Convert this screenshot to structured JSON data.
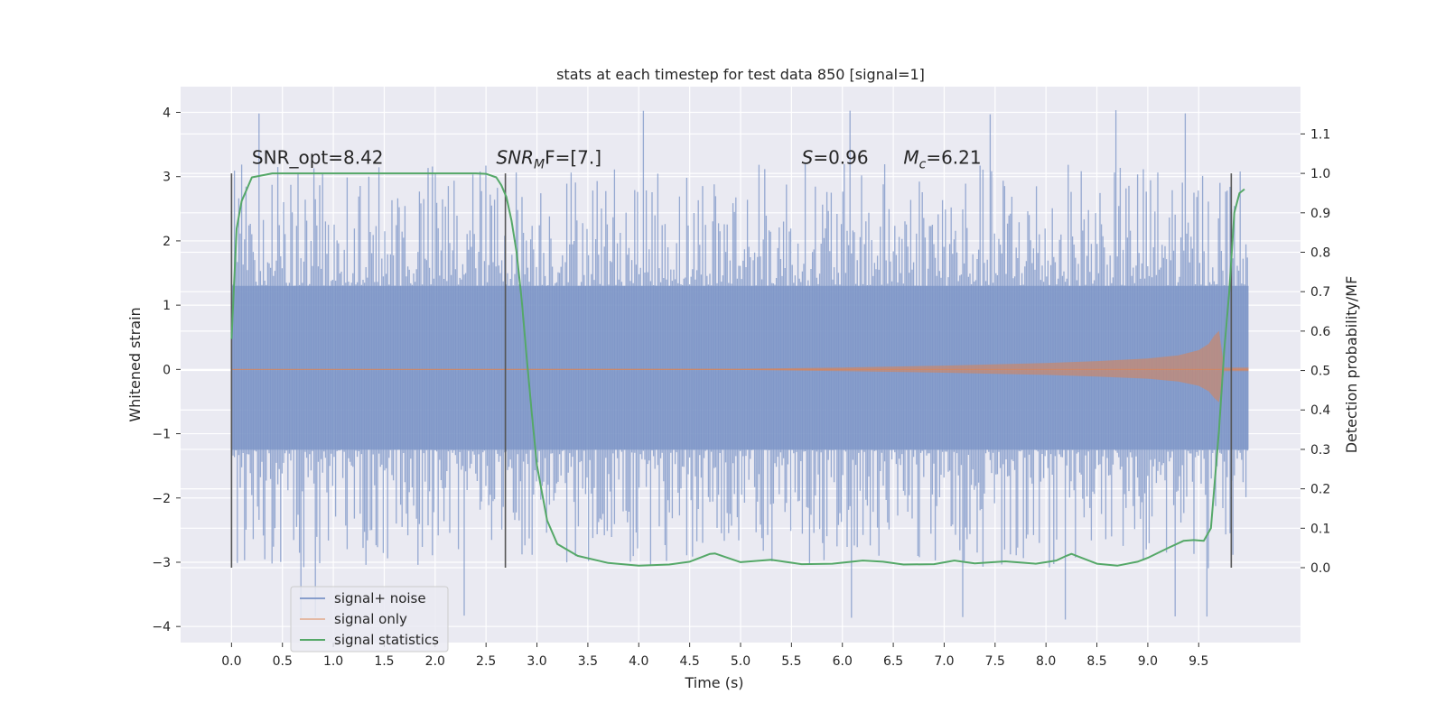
{
  "chart_data": {
    "type": "line",
    "title": "stats at each timestep for test data 850 [signal=1]",
    "xlabel": "Time (s)",
    "ylabel": "Whitened strain",
    "y2label": "Detection probability/MF",
    "xlim": [
      -0.5,
      10.5
    ],
    "ylim": [
      -4.25,
      4.4
    ],
    "y2lim": [
      -0.19,
      1.22
    ],
    "xticks": [
      "0.0",
      "0.5",
      "1.0",
      "1.5",
      "2.0",
      "2.5",
      "3.0",
      "3.5",
      "4.0",
      "4.5",
      "5.0",
      "5.5",
      "6.0",
      "6.5",
      "7.0",
      "7.5",
      "8.0",
      "8.5",
      "9.0",
      "9.5"
    ],
    "yticks": [
      "4",
      "3",
      "2",
      "1",
      "0",
      "−1",
      "−2",
      "−3",
      "−4"
    ],
    "y2ticks": [
      "1.1",
      "1.0",
      "0.9",
      "0.8",
      "0.7",
      "0.6",
      "0.5",
      "0.4",
      "0.3",
      "0.2",
      "0.1",
      "0.0"
    ],
    "grid": true,
    "legend_position": "lower-left",
    "colors": {
      "noise": "#7a93c6",
      "signal": "#dd8452",
      "stats": "#55a868",
      "vline": "#555555",
      "axes_bg": "#eaeaf2",
      "grid": "#ffffff"
    },
    "annotations": [
      {
        "label": "SNR_opt=8.42",
        "x": 0.2,
        "y": 3.2
      },
      {
        "label": "SNR_MF=[7.]",
        "x": 2.6,
        "y": 3.2
      },
      {
        "label": "S=0.96",
        "x": 5.6,
        "y": 3.2
      },
      {
        "label": "M_c=6.21",
        "x": 6.6,
        "y": 3.2
      }
    ],
    "vertical_markers": [
      0.0,
      2.69,
      9.82
    ],
    "series": [
      {
        "name": "signal+ noise",
        "kind": "noise-band",
        "x_range": [
          0.0,
          9.99
        ],
        "core_band": [
          -1.25,
          1.3
        ],
        "upper_extent": [
          2.0,
          4.05
        ],
        "lower_extent": [
          -1.9,
          -3.9
        ]
      },
      {
        "name": "signal only",
        "kind": "chirp-envelope",
        "x": [
          0.0,
          5.0,
          6.0,
          7.0,
          8.0,
          8.5,
          9.0,
          9.3,
          9.5,
          9.6,
          9.65,
          9.7,
          9.75,
          9.99
        ],
        "amplitude": [
          0.005,
          0.01,
          0.03,
          0.06,
          0.1,
          0.13,
          0.17,
          0.22,
          0.3,
          0.4,
          0.52,
          0.6,
          0.03,
          0.03
        ]
      },
      {
        "name": "signal statistics",
        "kind": "line",
        "axis": "right",
        "x": [
          0.0,
          0.05,
          0.1,
          0.15,
          0.2,
          0.4,
          0.8,
          1.5,
          2.0,
          2.4,
          2.5,
          2.6,
          2.65,
          2.7,
          2.75,
          2.8,
          2.85,
          2.9,
          2.95,
          3.0,
          3.1,
          3.2,
          3.4,
          3.7,
          4.0,
          4.3,
          4.5,
          4.6,
          4.7,
          4.75,
          4.85,
          5.0,
          5.3,
          5.6,
          5.9,
          6.2,
          6.4,
          6.6,
          6.9,
          7.1,
          7.3,
          7.6,
          7.9,
          8.1,
          8.2,
          8.25,
          8.35,
          8.5,
          8.7,
          8.9,
          9.0,
          9.2,
          9.35,
          9.45,
          9.55,
          9.62,
          9.7,
          9.75,
          9.8,
          9.85,
          9.9,
          9.95
        ],
        "y": [
          0.58,
          0.86,
          0.93,
          0.96,
          0.99,
          1.0,
          1.0,
          1.0,
          1.0,
          1.0,
          0.999,
          0.99,
          0.97,
          0.94,
          0.88,
          0.8,
          0.68,
          0.53,
          0.39,
          0.26,
          0.12,
          0.06,
          0.03,
          0.012,
          0.005,
          0.008,
          0.015,
          0.025,
          0.035,
          0.036,
          0.027,
          0.014,
          0.02,
          0.009,
          0.01,
          0.018,
          0.015,
          0.008,
          0.009,
          0.018,
          0.011,
          0.016,
          0.01,
          0.018,
          0.03,
          0.035,
          0.025,
          0.01,
          0.005,
          0.015,
          0.025,
          0.05,
          0.068,
          0.07,
          0.068,
          0.1,
          0.35,
          0.55,
          0.7,
          0.9,
          0.95,
          0.96
        ]
      }
    ]
  }
}
